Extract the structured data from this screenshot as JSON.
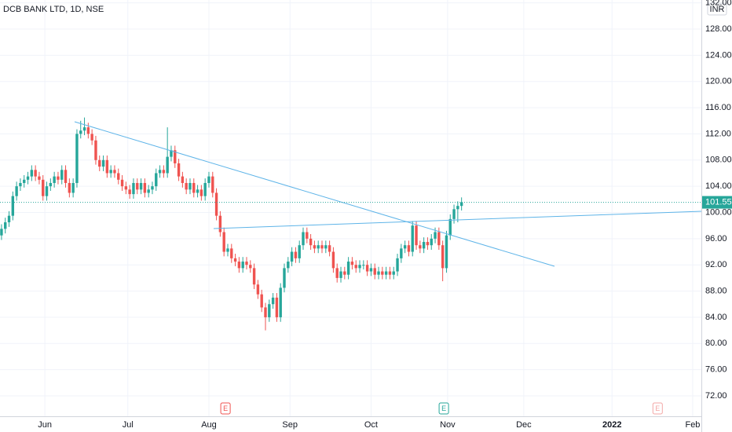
{
  "chart_data": {
    "type": "candlestick",
    "title": "DCB BANK LTD, 1D, NSE",
    "currency": "INR",
    "up_color": "#26a69a",
    "down_color": "#ef5350",
    "x": [
      0,
      1,
      2,
      3,
      4,
      5,
      6,
      7,
      8,
      9,
      10,
      11,
      12,
      13,
      14,
      15,
      16,
      17,
      18,
      19,
      20,
      21,
      22,
      23,
      24,
      25,
      26,
      27,
      28,
      29,
      30,
      31,
      32,
      33,
      34,
      35,
      36,
      37,
      38,
      39,
      40,
      41,
      42,
      43,
      44,
      45,
      46,
      47,
      48,
      49,
      50,
      51,
      52,
      53,
      54,
      55,
      56,
      57,
      58,
      59,
      60,
      61,
      62,
      63,
      64,
      65,
      66,
      67,
      68,
      69,
      70,
      71,
      72,
      73,
      74,
      75,
      76,
      77,
      78,
      79,
      80,
      81,
      82,
      83,
      84,
      85,
      86,
      87,
      88,
      89,
      90,
      91,
      92,
      93,
      94,
      95,
      96,
      97,
      98,
      99,
      100,
      101,
      102,
      103,
      104,
      105,
      106,
      107,
      108,
      109,
      110,
      111,
      112,
      113,
      114,
      115,
      116,
      117,
      118,
      119,
      120,
      121,
      122
    ],
    "open": [
      96.5,
      97.5,
      98.5,
      99.5,
      102.5,
      104,
      104.5,
      105,
      105.5,
      106.5,
      105.5,
      105,
      102.5,
      104,
      104.5,
      105.5,
      105,
      106.5,
      104.5,
      103,
      104.5,
      112,
      112.5,
      113,
      112,
      111,
      108,
      107,
      108,
      106,
      106.5,
      106,
      105,
      104,
      103.5,
      102.8,
      104.5,
      103.5,
      104.5,
      103,
      103.5,
      104,
      106,
      106.5,
      106,
      108.5,
      109.5,
      107.5,
      105.5,
      104.5,
      103.5,
      104.5,
      103,
      103.5,
      102.5,
      104.5,
      105.5,
      103,
      99.5,
      97,
      94,
      94.5,
      93,
      92.5,
      91.5,
      92.5,
      92,
      91.5,
      89,
      87.5,
      85.5,
      84,
      86,
      87,
      84,
      88.5,
      91.5,
      92.5,
      94,
      93,
      95,
      97,
      96,
      95,
      94.5,
      95,
      94.5,
      95,
      94,
      91.5,
      90,
      91,
      90.5,
      92.5,
      92,
      91.5,
      92,
      92,
      91,
      91.5,
      90.5,
      91,
      90.5,
      91,
      90.5,
      91,
      93,
      94.5,
      95,
      94,
      98,
      95,
      94.5,
      95.5,
      95,
      96,
      97,
      95,
      91.5,
      96.5,
      99,
      100.5,
      101
    ],
    "high": [
      98.2,
      99.2,
      100.2,
      103.2,
      104.7,
      105.2,
      105.7,
      106.2,
      107.2,
      107.2,
      106.2,
      105.7,
      104.7,
      105.2,
      106.2,
      106.2,
      107.2,
      107.2,
      105.2,
      105.2,
      112.7,
      114,
      114.5,
      113.7,
      112.7,
      111.7,
      108.7,
      108.7,
      108.7,
      107.2,
      107.2,
      106.7,
      105.7,
      104.7,
      104.2,
      105.2,
      105.2,
      105.2,
      105.2,
      104.2,
      104.7,
      106.7,
      107.2,
      107.2,
      113,
      110.2,
      110.2,
      108.2,
      106.2,
      105.2,
      105.2,
      105.2,
      104.2,
      104.2,
      105.2,
      106.2,
      106.2,
      103.7,
      100.2,
      97.7,
      95.2,
      95.2,
      93.7,
      93.2,
      93.2,
      93.2,
      92.7,
      92.2,
      89.7,
      88.2,
      86.2,
      86.7,
      87.7,
      87.7,
      89.2,
      92.2,
      93.2,
      94.7,
      94.7,
      95.7,
      97.7,
      97.7,
      96.7,
      95.7,
      95.7,
      95.7,
      95.7,
      95.7,
      94.7,
      92.2,
      91.7,
      91.7,
      93.2,
      93.2,
      92.7,
      92.7,
      92.7,
      92.7,
      92.2,
      92.2,
      91.7,
      91.7,
      91.7,
      91.7,
      91.7,
      93.7,
      95.2,
      95.7,
      95.7,
      98.7,
      98.7,
      95.7,
      96.2,
      96.2,
      96.7,
      97.7,
      97.7,
      95.7,
      97.2,
      99.7,
      101.2,
      101.7,
      102.3
    ],
    "low": [
      95.8,
      96.8,
      97.8,
      98.8,
      101.8,
      103.3,
      103.8,
      104.3,
      104.8,
      104.8,
      104.3,
      101.8,
      101.8,
      103.3,
      103.8,
      104.3,
      104.3,
      103.8,
      102.3,
      102.3,
      103.8,
      111.3,
      111.8,
      111.3,
      110.3,
      107.3,
      106.3,
      106.3,
      105.3,
      105.3,
      105.3,
      104.3,
      103.3,
      102.8,
      102.1,
      102.1,
      102.8,
      102.8,
      102.3,
      102.3,
      102.8,
      103.3,
      105.3,
      105.3,
      105.3,
      107.8,
      106.8,
      104.8,
      103.8,
      102.8,
      102.8,
      102.3,
      102.3,
      101.8,
      101.8,
      103.8,
      102.3,
      98.8,
      96.3,
      93.3,
      93.3,
      92.3,
      91.8,
      90.8,
      90.8,
      91.3,
      90.8,
      88.3,
      86.8,
      84.8,
      82,
      83.3,
      85.3,
      83.3,
      83.3,
      87.8,
      90.8,
      91.8,
      92.3,
      92.3,
      94.3,
      95.3,
      94.3,
      93.8,
      93.8,
      93.8,
      93.8,
      93.3,
      90.8,
      89.3,
      89.3,
      89.8,
      89.8,
      91.3,
      90.8,
      90.8,
      91.3,
      90.3,
      90.3,
      89.8,
      89.8,
      89.8,
      89.8,
      89.8,
      89.8,
      90.3,
      92.3,
      93.8,
      93.3,
      93.3,
      94.3,
      93.8,
      93.8,
      94.3,
      94.3,
      95.3,
      94.3,
      89.5,
      90.8,
      95.8,
      98.3,
      98.5,
      100.3
    ],
    "close": [
      97.5,
      98.5,
      99.5,
      102.5,
      104,
      104.5,
      105,
      105.5,
      106.5,
      105.5,
      105,
      102.5,
      104,
      104.5,
      105.5,
      105,
      106.5,
      104.5,
      103,
      104.5,
      112,
      112.5,
      113,
      112,
      111,
      108,
      107,
      108,
      106,
      106.5,
      106,
      105,
      104,
      103.5,
      102.8,
      104.5,
      103.5,
      104.5,
      103,
      103.5,
      104,
      106,
      106.5,
      106,
      108.5,
      109.5,
      107.5,
      105.5,
      104.5,
      103.5,
      104.5,
      103,
      103.5,
      102.5,
      104.5,
      105.5,
      103,
      99.5,
      97,
      94,
      94.5,
      93,
      92.5,
      91.5,
      92.5,
      92,
      91.5,
      89,
      87.5,
      85.5,
      84,
      86,
      87,
      84,
      88.5,
      91.5,
      92.5,
      94,
      93,
      95,
      97,
      96,
      95,
      94.5,
      95,
      94.5,
      95,
      94,
      91.5,
      90,
      91,
      90.5,
      92.5,
      92,
      91.5,
      92,
      92,
      91,
      91.5,
      90.5,
      91,
      90.5,
      91,
      90.5,
      91,
      93,
      94.5,
      95,
      94,
      98,
      95,
      94.5,
      95.5,
      95,
      96,
      97,
      95,
      91.5,
      96.5,
      99,
      100.5,
      101,
      101.55
    ],
    "last_price": 101.55,
    "xlim": [
      -0.4,
      185.6
    ],
    "xticks": [
      {
        "value": 11.5,
        "label": "Jun"
      },
      {
        "value": 33.5,
        "label": "Jul"
      },
      {
        "value": 55,
        "label": "Aug"
      },
      {
        "value": 76.5,
        "label": "Sep"
      },
      {
        "value": 98,
        "label": "Oct"
      },
      {
        "value": 118.3,
        "label": "Nov"
      },
      {
        "value": 138.5,
        "label": "Dec"
      },
      {
        "value": 161.9,
        "label": "2022"
      },
      {
        "value": 183.3,
        "label": "Feb"
      }
    ],
    "ylim": [
      68.88,
      132.44
    ],
    "yticks": [
      {
        "value": 72,
        "label": "72.00"
      },
      {
        "value": 76,
        "label": "76.00"
      },
      {
        "value": 80,
        "label": "80.00"
      },
      {
        "value": 84,
        "label": "84.00"
      },
      {
        "value": 88,
        "label": "88.00"
      },
      {
        "value": 92,
        "label": "92.00"
      },
      {
        "value": 96,
        "label": "96.00"
      },
      {
        "value": 100,
        "label": "100.00"
      },
      {
        "value": 104,
        "label": "104.00"
      },
      {
        "value": 108,
        "label": "108.00"
      },
      {
        "value": 112,
        "label": "112.00"
      },
      {
        "value": 116,
        "label": "116.00"
      },
      {
        "value": 120,
        "label": "120.00"
      },
      {
        "value": 124,
        "label": "124.00"
      },
      {
        "value": 128,
        "label": "128.00"
      },
      {
        "value": 132,
        "label": "132.00"
      }
    ],
    "grid": true,
    "events": [
      {
        "label": "E",
        "x": 59.4,
        "color": "#ef5350"
      },
      {
        "label": "E",
        "x": 117.3,
        "color": "#26a69a"
      },
      {
        "label": "E",
        "x": 174,
        "color": "#f3a6a4"
      }
    ]
  }
}
